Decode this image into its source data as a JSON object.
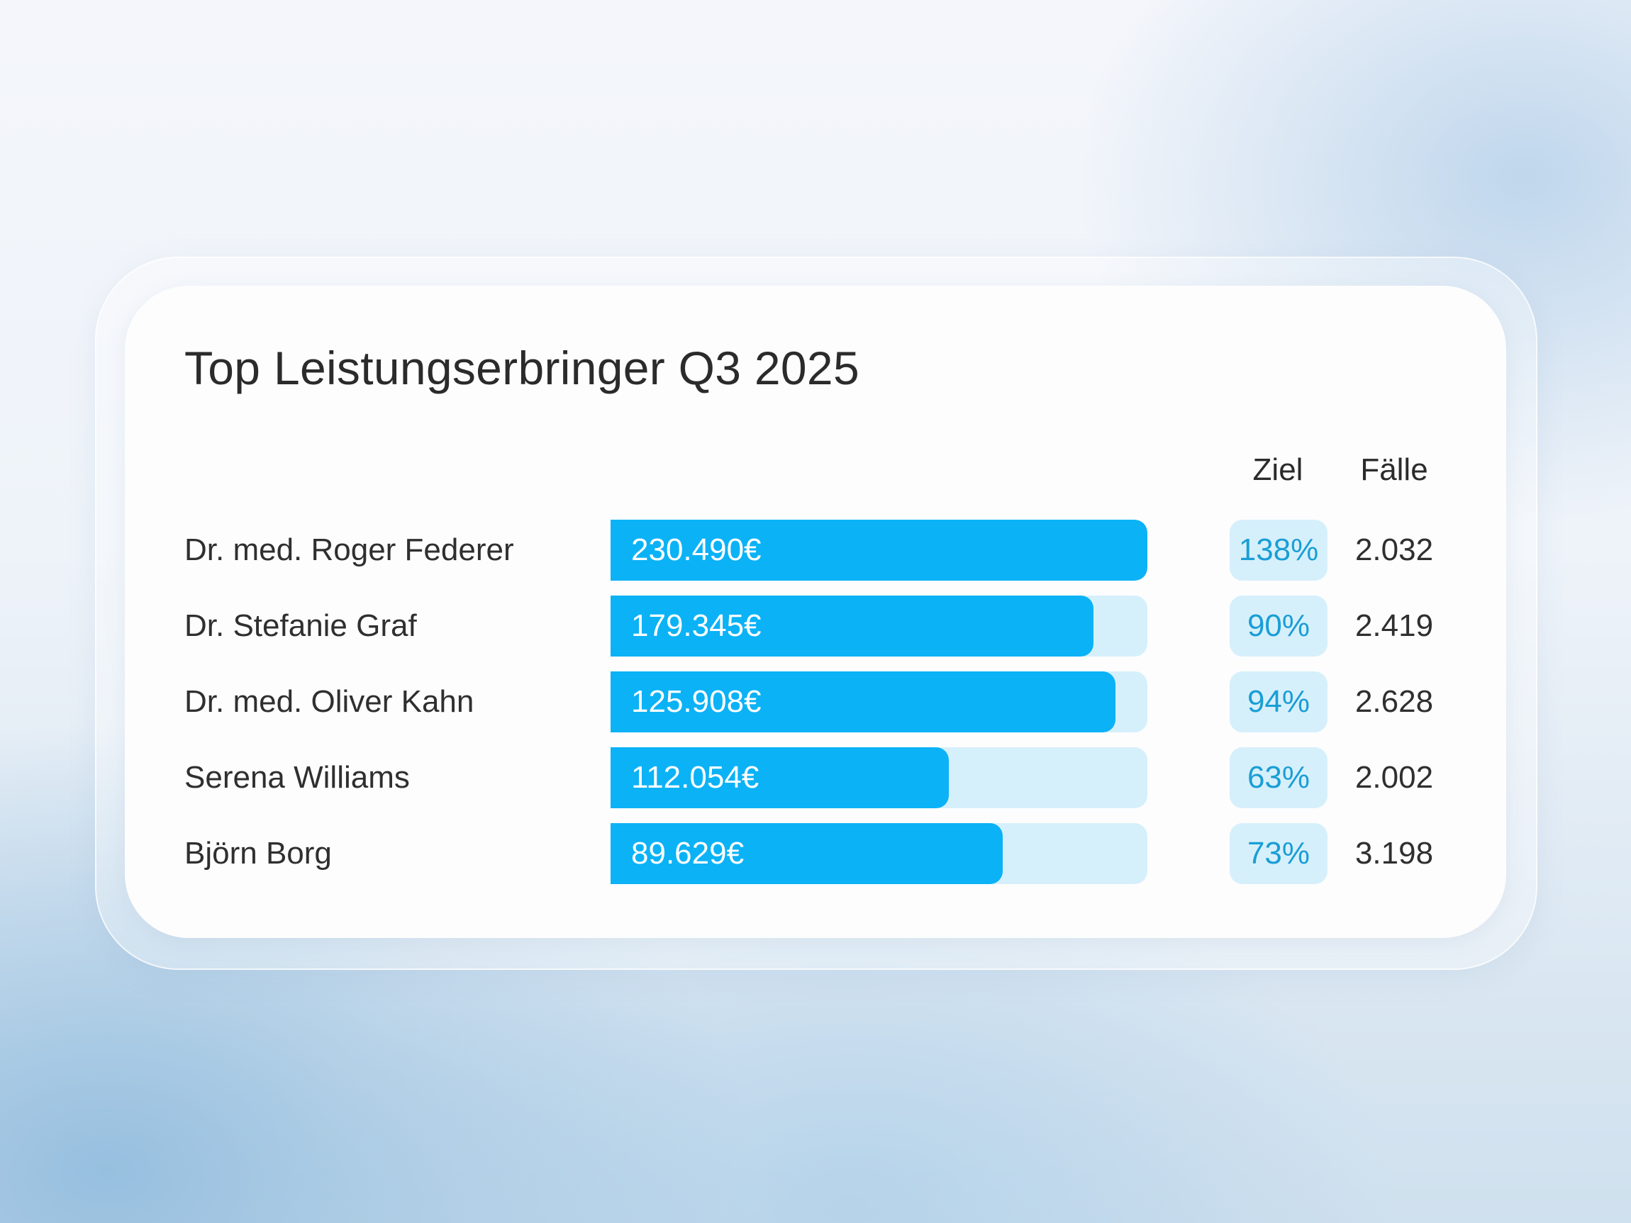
{
  "card": {
    "title": "Top Leistungserbringer Q3 2025"
  },
  "columns": {
    "goal": "Ziel",
    "cases": "Fälle"
  },
  "colors": {
    "bar_fill": "#0bb2f6",
    "bar_track": "#d6f0fb",
    "goal_text": "#1a9ed6"
  },
  "rows": [
    {
      "name": "Dr. med. Roger Federer",
      "amount": "230.490€",
      "goal": "138%",
      "goal_value": 1.38,
      "cases": "2.032"
    },
    {
      "name": "Dr. Stefanie Graf",
      "amount": "179.345€",
      "goal": "90%",
      "goal_value": 0.9,
      "cases": "2.419"
    },
    {
      "name": "Dr. med. Oliver Kahn",
      "amount": "125.908€",
      "goal": "94%",
      "goal_value": 0.94,
      "cases": "2.628"
    },
    {
      "name": "Serena Williams",
      "amount": "112.054€",
      "goal": "63%",
      "goal_value": 0.63,
      "cases": "2.002"
    },
    {
      "name": "Björn Borg",
      "amount": "89.629€",
      "goal": "73%",
      "goal_value": 0.73,
      "cases": "3.198"
    }
  ]
}
